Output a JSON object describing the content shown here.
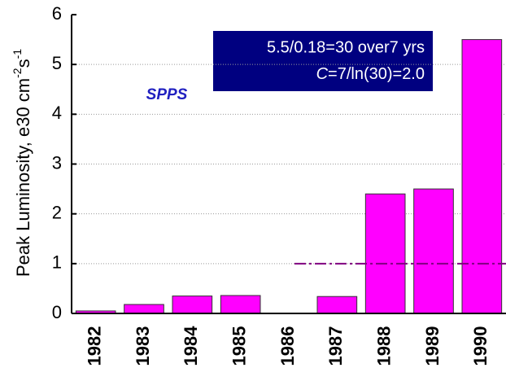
{
  "chart_data": {
    "type": "bar",
    "categories": [
      "1982",
      "1983",
      "1984",
      "1985",
      "1986",
      "1987",
      "1988",
      "1989",
      "1990"
    ],
    "values": [
      0.05,
      0.18,
      0.35,
      0.36,
      0,
      0.34,
      2.4,
      2.5,
      5.5
    ],
    "color": "#ff00ff",
    "ylim": [
      0,
      6
    ],
    "yticks": [
      0,
      1,
      2,
      3,
      4,
      5,
      6
    ],
    "grid": true,
    "ylabel_parts": [
      "Peak Luminosity, e30 cm",
      "-2",
      "s",
      "-1"
    ],
    "label": "SPPS",
    "annotation": [
      "5.5/0.18=30 over7 yrs",
      "C",
      "=7/ln(30)=2.0"
    ],
    "reference_line": {
      "value": 1,
      "color": "#800080"
    }
  }
}
